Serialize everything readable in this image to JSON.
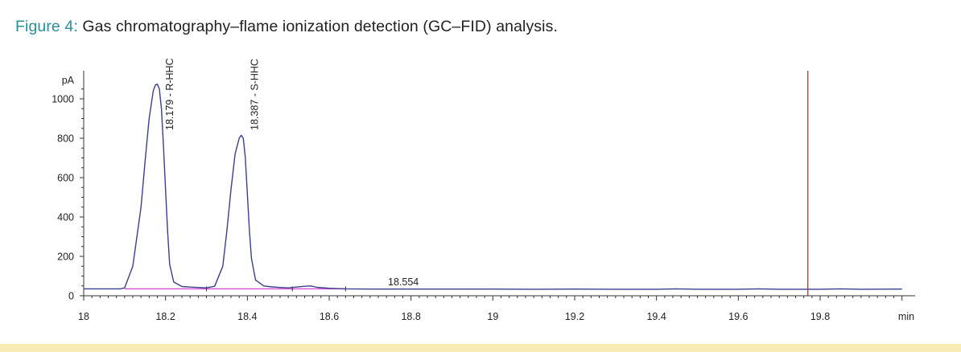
{
  "caption": {
    "label": "Figure 4:",
    "text": " Gas chromatography–flame ionization detection (GC–FID) analysis."
  },
  "colors": {
    "caption_label": "#2a8f9a",
    "trace": "#3a3f8f",
    "baseline": "#d24fd6",
    "marker": "#9b2b2b",
    "bottom_band": "#f9ebb5"
  },
  "chart_data": {
    "type": "line",
    "xlabel": "min",
    "ylabel": "pA",
    "xlim": [
      18,
      20.0
    ],
    "ylim": [
      0,
      1100
    ],
    "x_ticks": [
      18,
      18.2,
      18.4,
      18.6,
      18.8,
      19,
      19.2,
      19.4,
      19.6,
      19.8
    ],
    "x_tick_labels": [
      "18",
      "18.2",
      "18.4",
      "18.6",
      "18.8",
      "19",
      "19.2",
      "19.4",
      "19.6",
      "19.8"
    ],
    "y_ticks": [
      0,
      200,
      400,
      600,
      800,
      1000
    ],
    "y_tick_labels": [
      "0",
      "200",
      "400",
      "600",
      "800",
      "1000"
    ],
    "peaks": [
      {
        "label": "18.179 - R-HHC",
        "rt": 18.179,
        "height": 1075
      },
      {
        "label": "18.387 - S-HHC",
        "rt": 18.387,
        "height": 815
      },
      {
        "label": "18.554",
        "rt": 18.554,
        "height": 15
      }
    ],
    "baseline_level": 35,
    "integration_baseline": [
      18.1,
      18.64
    ],
    "marker_x": 19.77,
    "series": [
      {
        "x": [
          18.0,
          18.09,
          18.1,
          18.12,
          18.14,
          18.15,
          18.16,
          18.17,
          18.175,
          18.18,
          18.185,
          18.19,
          18.195,
          18.2,
          18.205,
          18.21,
          18.22,
          18.24,
          18.26,
          18.28,
          18.3,
          18.32,
          18.34,
          18.35,
          18.36,
          18.37,
          18.38,
          18.385,
          18.39,
          18.395,
          18.4,
          18.405,
          18.41,
          18.42,
          18.44,
          18.46,
          18.48,
          18.5,
          18.52,
          18.54,
          18.555,
          18.57,
          18.6,
          18.64,
          18.7,
          18.8,
          18.9,
          19.0,
          19.1,
          19.2,
          19.3,
          19.4,
          19.45,
          19.5,
          19.6,
          19.65,
          19.7,
          19.8,
          19.85,
          19.9,
          20.0
        ],
        "y": [
          35,
          35,
          40,
          150,
          450,
          680,
          900,
          1040,
          1070,
          1075,
          1050,
          950,
          760,
          540,
          330,
          160,
          70,
          47,
          44,
          42,
          40,
          48,
          150,
          330,
          540,
          720,
          800,
          815,
          800,
          700,
          520,
          330,
          190,
          80,
          50,
          45,
          42,
          40,
          44,
          48,
          50,
          43,
          38,
          35,
          34,
          34,
          34,
          34,
          33,
          34,
          33,
          33,
          35,
          33,
          33,
          35,
          33,
          33,
          35,
          33,
          34
        ]
      }
    ]
  }
}
